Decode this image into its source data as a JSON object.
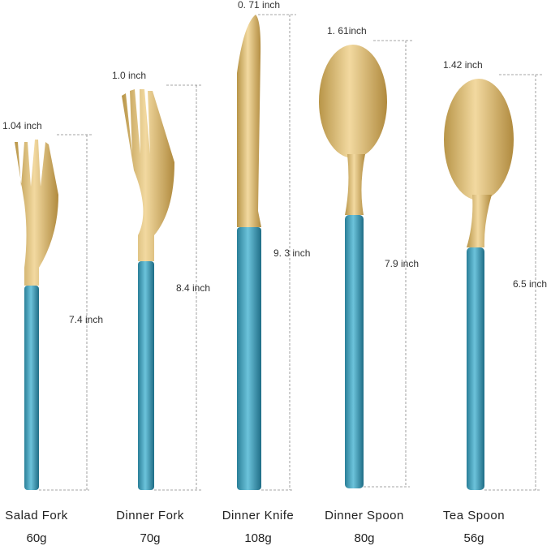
{
  "items": [
    {
      "name": "Salad Fork",
      "weight": "60g",
      "width": "1.04 inch",
      "length": "7.4 inch"
    },
    {
      "name": "Dinner Fork",
      "weight": "70g",
      "width": "1.0 inch",
      "length": "8.4 inch"
    },
    {
      "name": "Dinner Knife",
      "weight": "108g",
      "width": "0. 71 inch",
      "length": "9. 3 inch"
    },
    {
      "name": "Dinner Spoon",
      "weight": "80g",
      "width": "1. 61inch",
      "length": "7.9 inch"
    },
    {
      "name": "Tea Spoon",
      "weight": "56g",
      "width": "1.42 inch",
      "length": "6.5 inch"
    }
  ]
}
